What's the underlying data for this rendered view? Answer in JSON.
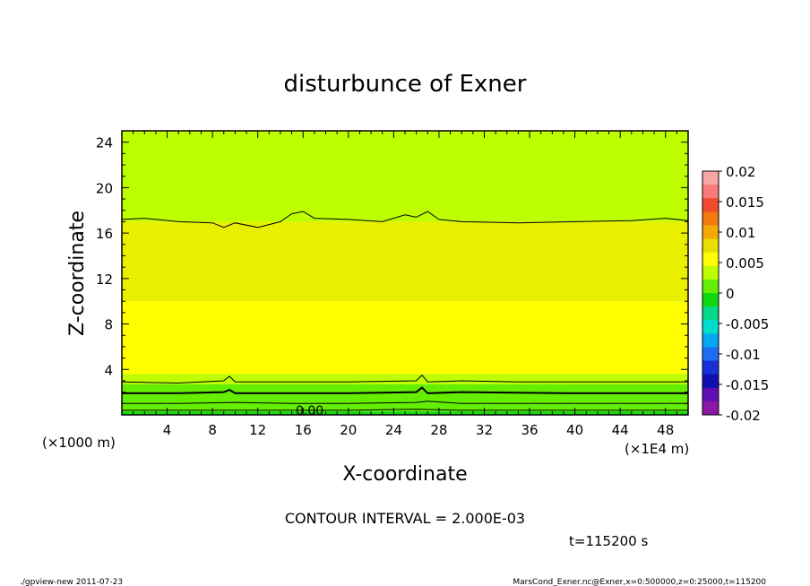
{
  "chart_data": {
    "type": "contour",
    "title": "disturbunce of Exner",
    "xlabel": "X-coordinate",
    "ylabel": "Z-coordinate",
    "x_unit_left": "(×1000 m)",
    "x_unit_right": "(×1E4 m)",
    "xlim": [
      0,
      50
    ],
    "ylim": [
      0,
      25
    ],
    "x_ticks": [
      4,
      8,
      12,
      16,
      20,
      24,
      28,
      32,
      36,
      40,
      44,
      48
    ],
    "y_ticks": [
      4,
      8,
      12,
      16,
      20,
      24
    ],
    "x_tick_labels": [
      "4",
      "8",
      "12",
      "16",
      "20",
      "24",
      "28",
      "32",
      "36",
      "40",
      "44",
      "48"
    ],
    "y_tick_labels": [
      "4",
      "8",
      "12",
      "16",
      "20",
      "24"
    ],
    "colorbar": {
      "min": -0.02,
      "max": 0.02,
      "tick_labels": [
        "0.02",
        "0.015",
        "0.01",
        "0.005",
        "0",
        "-0.005",
        "-0.01",
        "-0.015",
        "-0.02"
      ],
      "colors": [
        "#f7a6a6",
        "#f87a7a",
        "#f24a2e",
        "#f07a10",
        "#f5a800",
        "#e8de00",
        "#ffff00",
        "#bdff00",
        "#66ee00",
        "#10d810",
        "#00d88a",
        "#00dccc",
        "#00a8f0",
        "#1e6cf0",
        "#1830d8",
        "#1010b0",
        "#6010b0",
        "#8c18a8"
      ]
    },
    "bands": [
      {
        "z0": 0,
        "z1": 0.3,
        "color": "#10d810"
      },
      {
        "z0": 0.3,
        "z1": 2.7,
        "color": "#66ee00"
      },
      {
        "z0": 2.7,
        "z1": 3.6,
        "color": "#bdff00"
      },
      {
        "z0": 3.6,
        "z1": 10.0,
        "color": "#ffff00"
      },
      {
        "z0": 10.0,
        "z1": 17.0,
        "color": "#e8f000"
      },
      {
        "z0": 17.0,
        "z1": 25.0,
        "color": "#bdff00"
      }
    ],
    "contours": [
      {
        "level_z": 17.0,
        "points": [
          [
            0,
            17.2
          ],
          [
            2,
            17.3
          ],
          [
            5,
            17.0
          ],
          [
            8,
            16.9
          ],
          [
            9,
            16.5
          ],
          [
            10,
            16.9
          ],
          [
            12,
            16.5
          ],
          [
            14,
            17.0
          ],
          [
            15,
            17.7
          ],
          [
            16,
            17.9
          ],
          [
            17,
            17.3
          ],
          [
            20,
            17.2
          ],
          [
            23,
            17.0
          ],
          [
            25,
            17.6
          ],
          [
            26,
            17.4
          ],
          [
            27,
            17.9
          ],
          [
            28,
            17.2
          ],
          [
            30,
            17.0
          ],
          [
            35,
            16.9
          ],
          [
            40,
            17.0
          ],
          [
            45,
            17.1
          ],
          [
            48,
            17.3
          ],
          [
            50,
            17.1
          ]
        ]
      },
      {
        "level_z": 2.9,
        "points": [
          [
            0,
            2.9
          ],
          [
            5,
            2.8
          ],
          [
            9,
            3.0
          ],
          [
            9.5,
            3.4
          ],
          [
            10,
            2.9
          ],
          [
            15,
            2.9
          ],
          [
            20,
            2.9
          ],
          [
            26,
            3.0
          ],
          [
            26.5,
            3.5
          ],
          [
            27,
            2.9
          ],
          [
            30,
            3.0
          ],
          [
            35,
            2.9
          ],
          [
            40,
            2.9
          ],
          [
            45,
            2.9
          ],
          [
            50,
            2.9
          ]
        ]
      },
      {
        "level_z": 1.9,
        "points": [
          [
            0,
            1.9
          ],
          [
            5,
            1.9
          ],
          [
            9,
            2.0
          ],
          [
            9.5,
            2.2
          ],
          [
            10,
            1.9
          ],
          [
            15,
            1.9
          ],
          [
            20,
            1.9
          ],
          [
            26,
            2.0
          ],
          [
            26.5,
            2.4
          ],
          [
            27,
            1.9
          ],
          [
            30,
            2.0
          ],
          [
            40,
            1.9
          ],
          [
            50,
            1.9
          ]
        ]
      },
      {
        "level_z": 1.0,
        "points": [
          [
            0,
            1.0
          ],
          [
            5,
            1.0
          ],
          [
            10,
            1.1
          ],
          [
            15,
            1.0
          ],
          [
            20,
            1.0
          ],
          [
            26,
            1.1
          ],
          [
            27,
            1.2
          ],
          [
            30,
            1.0
          ],
          [
            40,
            1.0
          ],
          [
            50,
            1.0
          ]
        ]
      },
      {
        "level_z": 0.4,
        "points": [
          [
            0,
            0.4
          ],
          [
            10,
            0.4
          ],
          [
            20,
            0.4
          ],
          [
            26,
            0.5
          ],
          [
            30,
            0.4
          ],
          [
            40,
            0.4
          ],
          [
            50,
            0.4
          ]
        ]
      }
    ],
    "contour_label": "0.00",
    "contour_interval_text": "CONTOUR INTERVAL = 2.000E-03",
    "time_text": "t=115200 s",
    "footer_left": "./gpview-new   2011-07-23",
    "footer_right": "MarsCond_Exner.nc@Exner,x=0:500000,z=0:25000,t=115200"
  }
}
